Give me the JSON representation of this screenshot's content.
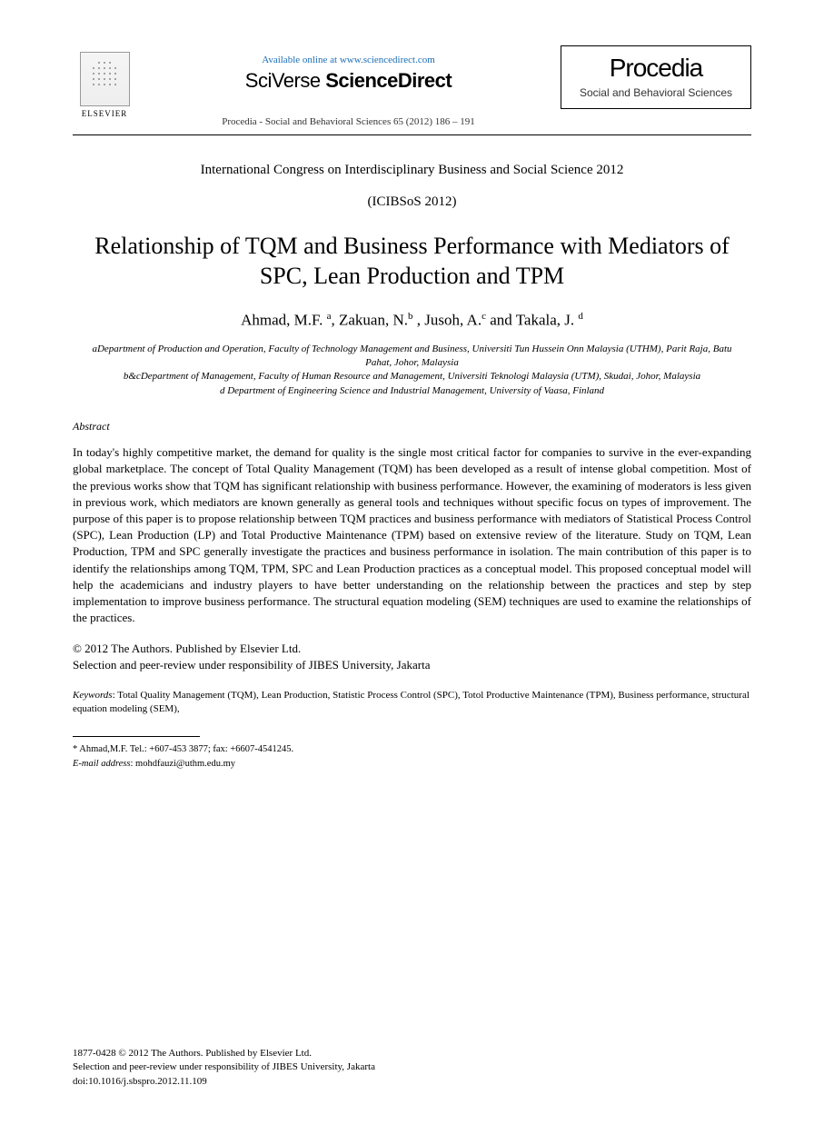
{
  "header": {
    "available_prefix": "Available online at ",
    "available_url": "www.sciencedirect.com",
    "brand_prefix": "SciVerse ",
    "brand_main": "ScienceDirect",
    "journal_ref": "Procedia - Social and Behavioral Sciences 65 (2012) 186 – 191",
    "elsevier_label": "ELSEVIER",
    "procedia_title": "Procedia",
    "procedia_sub": "Social and Behavioral Sciences"
  },
  "conference": {
    "name": "International Congress on Interdisciplinary Business and Social Science 2012",
    "code": "(ICIBSoS 2012)"
  },
  "title": "Relationship of TQM and Business Performance with Mediators of SPC, Lean Production and TPM",
  "authors_html": "Ahmad, M.F. <sup>a</sup>, Zakuan, N.<sup>b</sup> , Jusoh, A.<sup>c</sup> and Takala, J. <sup>d</sup>",
  "affiliations": {
    "a": "aDepartment of Production and Operation, Faculty of Technology Management and Business, Universiti Tun Hussein Onn Malaysia (UTHM), Parit Raja, Batu Pahat, Johor, Malaysia",
    "bc": "b&cDepartment of Management, Faculty of Human Resource and Management, Universiti Teknologi Malaysia (UTM),  Skudai, Johor, Malaysia",
    "d": "d Department of Engineering Science and Industrial Management, University of Vaasa, Finland"
  },
  "abstract": {
    "label": "Abstract",
    "body": "In today's highly competitive market, the demand for quality is the single most critical factor for companies to survive in the ever-expanding global marketplace. The concept of Total Quality Management (TQM) has been developed as a result of intense global competition. Most of the previous works show that TQM has significant relationship with business performance. However, the examining of moderators is less given in previous work, which mediators are known generally as general tools and techniques without specific focus on types of improvement. The purpose of this paper is to propose relationship between TQM practices and business performance with mediators of Statistical Process Control (SPC), Lean Production (LP) and Total Productive Maintenance (TPM) based on extensive review of the literature. Study on TQM, Lean Production, TPM and SPC generally investigate the practices and business performance in isolation. The main contribution of this paper is to identify the relationships among TQM, TPM, SPC and Lean Production practices as a conceptual model. This proposed conceptual model will help the academicians and industry players to have better understanding on the relationship between the practices and step by step implementation to improve business performance. The structural equation modeling (SEM) techniques are used to examine the relationships of the practices."
  },
  "copyright": {
    "line1": "© 2012 The Authors. Published by Elsevier Ltd.",
    "line2": "Selection and peer-review under responsibility of JIBES University, Jakarta"
  },
  "keywords": {
    "label": "Keywords",
    "text": ": Total Quality Management (TQM), Lean Production, Statistic Process Control (SPC), Totol Productive Maintenance (TPM), Business performance, structural equation modeling (SEM),"
  },
  "footnote": {
    "corr": "* Ahmad,M.F. Tel.: +607-453 3877; fax: +6607-4541245.",
    "email_label": "E-mail address",
    "email": ": mohdfauzi@uthm.edu.my"
  },
  "footer": {
    "issn_line": "1877-0428 © 2012 The Authors. Published by Elsevier Ltd.",
    "peer_line": "Selection and peer-review under responsibility of JIBES University, Jakarta",
    "doi": "doi:10.1016/j.sbspro.2012.11.109"
  },
  "colors": {
    "text": "#000000",
    "link": "#1a6db5",
    "background": "#ffffff"
  },
  "fonts": {
    "body_family": "Georgia, Times New Roman, serif",
    "title_size_pt": 26,
    "author_size_pt": 17,
    "abstract_size_pt": 13,
    "affiliation_size_pt": 11,
    "footnote_size_pt": 10.5
  }
}
